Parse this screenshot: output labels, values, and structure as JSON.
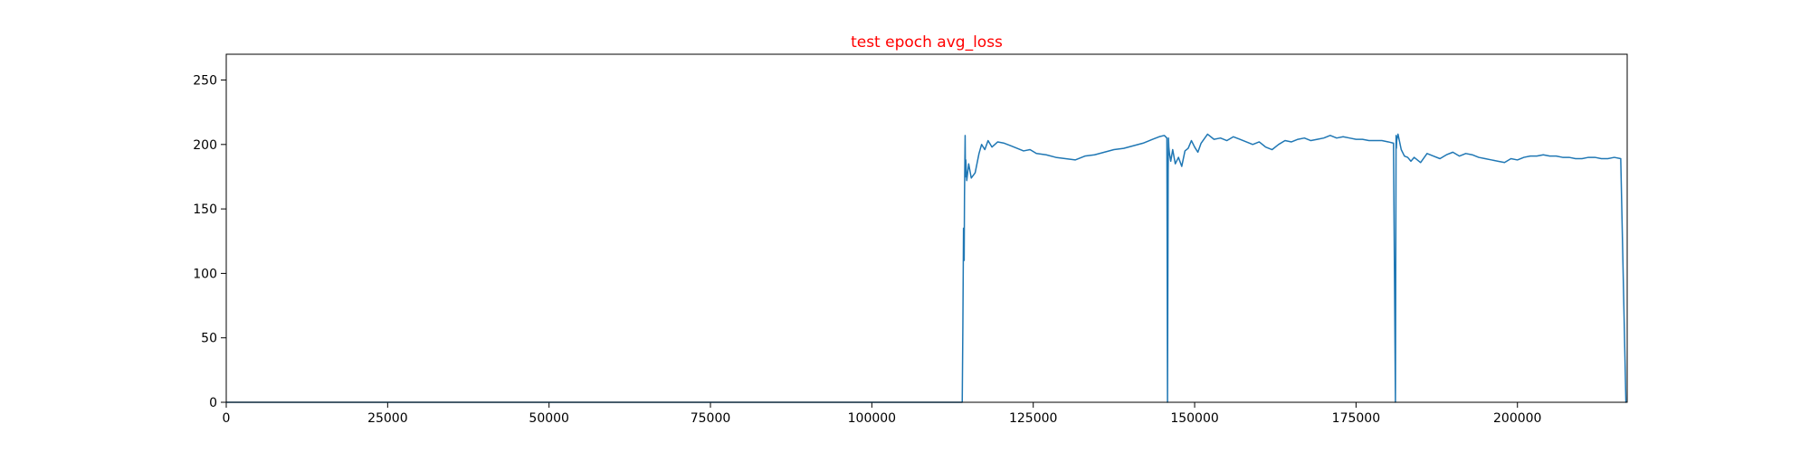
{
  "chart_data": {
    "type": "line",
    "title": "test epoch avg_loss",
    "title_color": "#ff0000",
    "xlabel": "",
    "ylabel": "",
    "xlim": [
      0,
      217000
    ],
    "ylim": [
      0,
      270
    ],
    "xticks": [
      0,
      25000,
      50000,
      75000,
      100000,
      125000,
      150000,
      175000,
      200000
    ],
    "yticks": [
      0,
      50,
      100,
      150,
      200,
      250
    ],
    "grid": false,
    "line_color": "#1f77b4",
    "series": [
      {
        "x": [
          0,
          114000,
          114100,
          114200,
          114300,
          114350,
          114450,
          114500,
          114550,
          114700,
          115000,
          115400,
          116000,
          116600,
          117000,
          117500,
          118000,
          118600,
          119500,
          120500,
          121500,
          122500,
          123500,
          124500,
          125500,
          127000,
          128500,
          130000,
          131500,
          133000,
          134500,
          136000,
          137500,
          139000,
          140500,
          142000,
          143500,
          144500,
          145300,
          145700,
          145800,
          145900,
          145950,
          146000,
          146100,
          146300,
          146600,
          147000,
          147500,
          148000,
          148500,
          149000,
          149500,
          150000,
          150500,
          151000,
          152000,
          153000,
          154000,
          155000,
          156000,
          157000,
          158000,
          159000,
          160000,
          161000,
          162000,
          163000,
          164000,
          165000,
          166000,
          167000,
          168000,
          169000,
          170000,
          171000,
          172000,
          173000,
          174000,
          175000,
          176000,
          177000,
          178000,
          179000,
          180000,
          180800,
          181100,
          181200,
          181250,
          181300,
          181500,
          182000,
          182500,
          183000,
          183500,
          184000,
          185000,
          186000,
          187000,
          188000,
          189000,
          190000,
          191000,
          192000,
          193000,
          194000,
          195000,
          196000,
          197000,
          198000,
          199000,
          200000,
          201000,
          202000,
          203000,
          204000,
          205000,
          206000,
          207000,
          208000,
          209000,
          210000,
          211000,
          212000,
          213000,
          214000,
          215000,
          216000,
          216800,
          216850
        ],
        "y": [
          0,
          0,
          60,
          135,
          110,
          160,
          207,
          175,
          188,
          172,
          185,
          174,
          178,
          193,
          200,
          196,
          203,
          198,
          202,
          201,
          199,
          197,
          195,
          196,
          193,
          192,
          190,
          189,
          188,
          191,
          192,
          194,
          196,
          197,
          199,
          201,
          204,
          206,
          207,
          205,
          0,
          180,
          205,
          198,
          193,
          187,
          196,
          185,
          190,
          183,
          195,
          197,
          203,
          198,
          194,
          201,
          208,
          204,
          205,
          203,
          206,
          204,
          202,
          200,
          202,
          198,
          196,
          200,
          203,
          202,
          204,
          205,
          203,
          204,
          205,
          207,
          205,
          206,
          205,
          204,
          204,
          203,
          203,
          203,
          202,
          201,
          0,
          207,
          197,
          203,
          208,
          196,
          191,
          190,
          187,
          190,
          186,
          193,
          191,
          189,
          192,
          194,
          191,
          193,
          192,
          190,
          189,
          188,
          187,
          186,
          189,
          188,
          190,
          191,
          191,
          192,
          191,
          191,
          190,
          190,
          189,
          189,
          190,
          190,
          189,
          189,
          190,
          189,
          0,
          0
        ]
      }
    ]
  }
}
